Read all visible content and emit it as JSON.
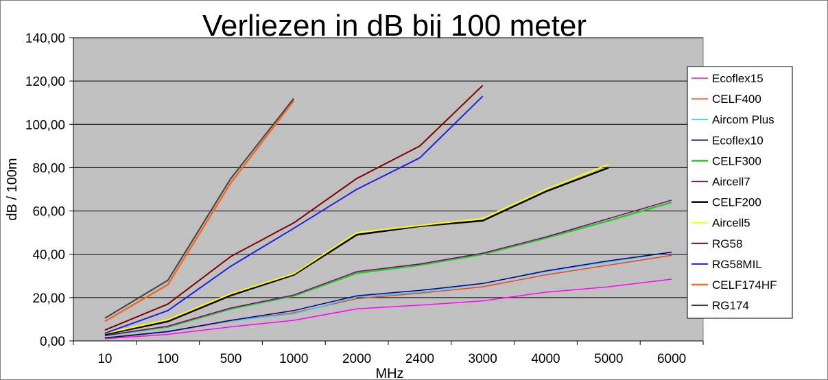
{
  "chart_data": {
    "type": "line",
    "title": "Verliezen in dB bij 100 meter",
    "xlabel": "MHz",
    "ylabel": "dB / 100m",
    "ylim": [
      0,
      140
    ],
    "y_ticks": [
      "0,00",
      "20,00",
      "40,00",
      "60,00",
      "80,00",
      "100,00",
      "120,00",
      "140,00"
    ],
    "y_tick_values": [
      0,
      20,
      40,
      60,
      80,
      100,
      120,
      140
    ],
    "categories": [
      "10",
      "100",
      "500",
      "1000",
      "2000",
      "2400",
      "3000",
      "4000",
      "5000",
      "6000"
    ],
    "grid": "horizontal",
    "legend_position": "right",
    "plot_background": "#c0c0c0",
    "series": [
      {
        "name": "Ecoflex15",
        "color": "#ff00ff",
        "width": 1.5,
        "values": [
          1,
          3,
          6.5,
          9.5,
          14.8,
          16.5,
          18.5,
          22.5,
          25,
          28.5
        ]
      },
      {
        "name": "CELF400",
        "color": "#e8461f",
        "width": 1.5,
        "values": [
          1.2,
          4.2,
          9.2,
          13,
          19.5,
          22,
          25,
          30.5,
          35,
          39.5
        ]
      },
      {
        "name": "Aircom Plus",
        "color": "#33ccff",
        "width": 1.5,
        "values": [
          1.5,
          4.5,
          9.3,
          12.5,
          20.3,
          22.5,
          26.5,
          32,
          36.5,
          41
        ]
      },
      {
        "name": "Ecoflex10",
        "color": "#000080",
        "width": 1.5,
        "values": [
          1.4,
          4.3,
          9.5,
          14,
          20.8,
          23.3,
          26.5,
          32.3,
          37,
          41
        ]
      },
      {
        "name": "CELF300",
        "color": "#22cc22",
        "width": 2.5,
        "values": [
          2.5,
          6.5,
          14.8,
          20.8,
          31.3,
          35,
          40,
          47.5,
          55.5,
          64
        ]
      },
      {
        "name": "Aircell7",
        "color": "#800080",
        "width": 1.5,
        "values": [
          2.5,
          6.8,
          15.2,
          21.2,
          32,
          35.5,
          40.5,
          48,
          56.5,
          65
        ]
      },
      {
        "name": "CELF200",
        "color": "#000000",
        "width": 2.5,
        "values": [
          3,
          9,
          21,
          30.5,
          49,
          53,
          55.5,
          69,
          80,
          null
        ]
      },
      {
        "name": "Aircell5",
        "color": "#ffff00",
        "width": 2,
        "values": [
          3.4,
          9.8,
          21.8,
          31,
          50,
          53.3,
          56.5,
          70,
          81.5,
          null
        ]
      },
      {
        "name": "RG58",
        "color": "#800000",
        "width": 2,
        "values": [
          5,
          17,
          39,
          54.5,
          75,
          90,
          118,
          null,
          null,
          null
        ]
      },
      {
        "name": "RG58MIL",
        "color": "#1f1fe0",
        "width": 2,
        "values": [
          3.5,
          14,
          34.5,
          52,
          70,
          84.5,
          113,
          null,
          null,
          null
        ]
      },
      {
        "name": "CELF174HF",
        "color": "#f06a25",
        "width": 2.5,
        "values": [
          9,
          26,
          73,
          111,
          null,
          null,
          null,
          null,
          null,
          null
        ]
      },
      {
        "name": "RG174",
        "color": "#404040",
        "width": 2,
        "values": [
          10.5,
          28,
          75,
          112,
          null,
          null,
          null,
          null,
          null,
          null
        ]
      }
    ]
  }
}
